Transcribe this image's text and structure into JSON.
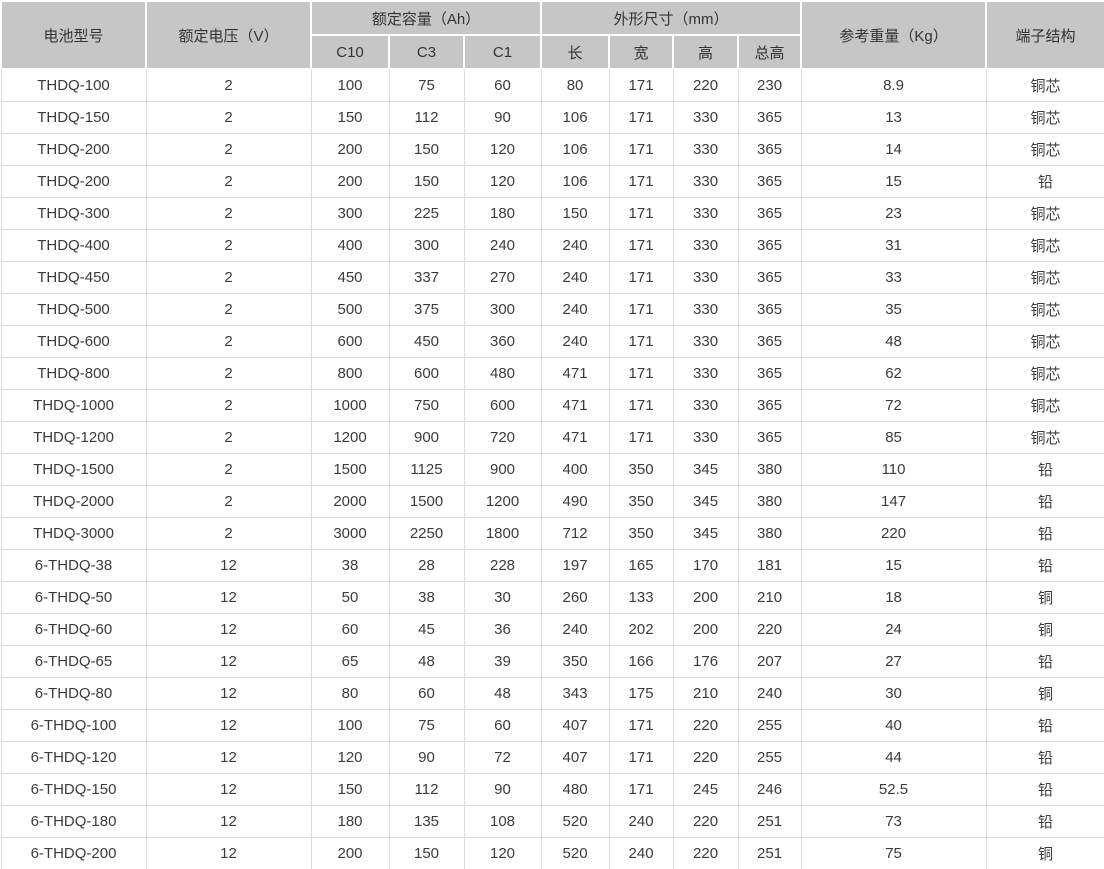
{
  "table": {
    "header": {
      "model": "电池型号",
      "voltage": "额定电压（V）",
      "capacity_group": "额定容量（Ah）",
      "capacity_cols": [
        "C10",
        "C3",
        "C1"
      ],
      "dimension_group": "外形尺寸（mm）",
      "dimension_cols": [
        "长",
        "宽",
        "高",
        "总高"
      ],
      "weight": "参考重量（Kg）",
      "terminal": "端子结构"
    },
    "rows": [
      [
        "THDQ-100",
        "2",
        "100",
        "75",
        "60",
        "80",
        "171",
        "220",
        "230",
        "8.9",
        "铜芯"
      ],
      [
        "THDQ-150",
        "2",
        "150",
        "112",
        "90",
        "106",
        "171",
        "330",
        "365",
        "13",
        "铜芯"
      ],
      [
        "THDQ-200",
        "2",
        "200",
        "150",
        "120",
        "106",
        "171",
        "330",
        "365",
        "14",
        "铜芯"
      ],
      [
        "THDQ-200",
        "2",
        "200",
        "150",
        "120",
        "106",
        "171",
        "330",
        "365",
        "15",
        "铅"
      ],
      [
        "THDQ-300",
        "2",
        "300",
        "225",
        "180",
        "150",
        "171",
        "330",
        "365",
        "23",
        "铜芯"
      ],
      [
        "THDQ-400",
        "2",
        "400",
        "300",
        "240",
        "240",
        "171",
        "330",
        "365",
        "31",
        "铜芯"
      ],
      [
        "THDQ-450",
        "2",
        "450",
        "337",
        "270",
        "240",
        "171",
        "330",
        "365",
        "33",
        "铜芯"
      ],
      [
        "THDQ-500",
        "2",
        "500",
        "375",
        "300",
        "240",
        "171",
        "330",
        "365",
        "35",
        "铜芯"
      ],
      [
        "THDQ-600",
        "2",
        "600",
        "450",
        "360",
        "240",
        "171",
        "330",
        "365",
        "48",
        "铜芯"
      ],
      [
        "THDQ-800",
        "2",
        "800",
        "600",
        "480",
        "471",
        "171",
        "330",
        "365",
        "62",
        "铜芯"
      ],
      [
        "THDQ-1000",
        "2",
        "1000",
        "750",
        "600",
        "471",
        "171",
        "330",
        "365",
        "72",
        "铜芯"
      ],
      [
        "THDQ-1200",
        "2",
        "1200",
        "900",
        "720",
        "471",
        "171",
        "330",
        "365",
        "85",
        "铜芯"
      ],
      [
        "THDQ-1500",
        "2",
        "1500",
        "1125",
        "900",
        "400",
        "350",
        "345",
        "380",
        "110",
        "铅"
      ],
      [
        "THDQ-2000",
        "2",
        "2000",
        "1500",
        "1200",
        "490",
        "350",
        "345",
        "380",
        "147",
        "铅"
      ],
      [
        "THDQ-3000",
        "2",
        "3000",
        "2250",
        "1800",
        "712",
        "350",
        "345",
        "380",
        "220",
        "铅"
      ],
      [
        "6-THDQ-38",
        "12",
        "38",
        "28",
        "228",
        "197",
        "165",
        "170",
        "181",
        "15",
        "铅"
      ],
      [
        "6-THDQ-50",
        "12",
        "50",
        "38",
        "30",
        "260",
        "133",
        "200",
        "210",
        "18",
        "铜"
      ],
      [
        "6-THDQ-60",
        "12",
        "60",
        "45",
        "36",
        "240",
        "202",
        "200",
        "220",
        "24",
        "铜"
      ],
      [
        "6-THDQ-65",
        "12",
        "65",
        "48",
        "39",
        "350",
        "166",
        "176",
        "207",
        "27",
        "铅"
      ],
      [
        "6-THDQ-80",
        "12",
        "80",
        "60",
        "48",
        "343",
        "175",
        "210",
        "240",
        "30",
        "铜"
      ],
      [
        "6-THDQ-100",
        "12",
        "100",
        "75",
        "60",
        "407",
        "171",
        "220",
        "255",
        "40",
        "铅"
      ],
      [
        "6-THDQ-120",
        "12",
        "120",
        "90",
        "72",
        "407",
        "171",
        "220",
        "255",
        "44",
        "铅"
      ],
      [
        "6-THDQ-150",
        "12",
        "150",
        "112",
        "90",
        "480",
        "171",
        "245",
        "246",
        "52.5",
        "铅"
      ],
      [
        "6-THDQ-180",
        "12",
        "180",
        "135",
        "108",
        "520",
        "240",
        "220",
        "251",
        "73",
        "铅"
      ],
      [
        "6-THDQ-200",
        "12",
        "200",
        "150",
        "120",
        "520",
        "240",
        "220",
        "251",
        "75",
        "铜"
      ]
    ]
  },
  "colors": {
    "header_bg": "#c6c6c6",
    "header_separator": "#ffffff",
    "body_border": "#dcdcdc",
    "text": "#3b3b3b"
  }
}
